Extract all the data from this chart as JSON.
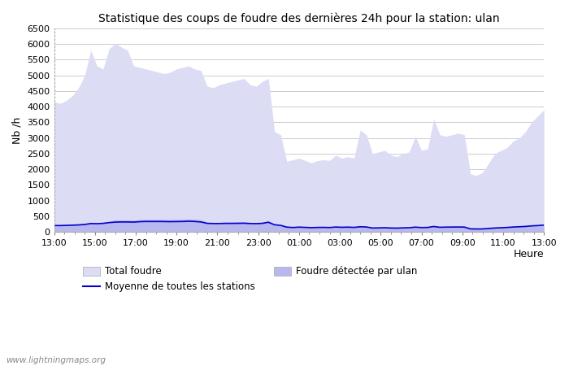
{
  "title": "Statistique des coups de foudre des dernières 24h pour la station: ulan",
  "xlabel": "Heure",
  "ylabel": "Nb /h",
  "xlim": [
    0,
    24
  ],
  "ylim": [
    0,
    6500
  ],
  "yticks": [
    0,
    500,
    1000,
    1500,
    2000,
    2500,
    3000,
    3500,
    4000,
    4500,
    5000,
    5500,
    6000,
    6500
  ],
  "xtick_labels": [
    "13:00",
    "15:00",
    "17:00",
    "19:00",
    "21:00",
    "23:00",
    "01:00",
    "03:00",
    "05:00",
    "07:00",
    "09:00",
    "11:00",
    "13:00"
  ],
  "xtick_positions": [
    0,
    2,
    4,
    6,
    8,
    10,
    12,
    14,
    16,
    18,
    20,
    22,
    24
  ],
  "color_total": "#dcdcf5",
  "color_ulan": "#b8b8ee",
  "color_moyenne": "#0000cc",
  "watermark": "www.lightningmaps.org",
  "total_foudre": [
    4150,
    4100,
    4200,
    4350,
    4600,
    5000,
    5800,
    5300,
    5200,
    5850,
    6020,
    5900,
    5800,
    5300,
    5250,
    5200,
    5150,
    5100,
    5050,
    5100,
    5200,
    5250,
    5300,
    5200,
    5150,
    4650,
    4600,
    4700,
    4750,
    4800,
    4850,
    4900,
    4700,
    4650,
    4800,
    4900,
    3200,
    3100,
    2250,
    2300,
    2350,
    2280,
    2200,
    2270,
    2300,
    2280,
    2450,
    2350,
    2400,
    2350,
    3250,
    3100,
    2500,
    2550,
    2600,
    2450,
    2400,
    2500,
    2550,
    3050,
    2600,
    2650,
    3600,
    3100,
    3050,
    3100,
    3150,
    3100,
    1850,
    1800,
    1900,
    2200,
    2500,
    2600,
    2700,
    2900,
    3000,
    3200,
    3500,
    3700,
    3900
  ],
  "foudre_ulan": [
    200,
    200,
    210,
    220,
    230,
    250,
    290,
    280,
    300,
    330,
    380,
    380,
    380,
    370,
    390,
    400,
    400,
    400,
    395,
    390,
    395,
    400,
    410,
    400,
    380,
    310,
    300,
    300,
    310,
    310,
    315,
    320,
    300,
    295,
    310,
    360,
    250,
    220,
    160,
    145,
    160,
    150,
    140,
    148,
    150,
    145,
    165,
    155,
    160,
    150,
    175,
    165,
    130,
    135,
    140,
    130,
    125,
    135,
    140,
    160,
    145,
    148,
    185,
    155,
    160,
    162,
    163,
    162,
    100,
    95,
    98,
    115,
    130,
    140,
    150,
    165,
    175,
    185,
    205,
    215,
    230
  ],
  "moyenne": [
    200,
    200,
    205,
    212,
    220,
    235,
    265,
    260,
    270,
    295,
    310,
    315,
    315,
    310,
    325,
    330,
    330,
    330,
    328,
    325,
    328,
    330,
    338,
    330,
    315,
    270,
    265,
    265,
    270,
    270,
    272,
    275,
    265,
    262,
    270,
    305,
    225,
    205,
    150,
    138,
    150,
    142,
    134,
    140,
    142,
    138,
    153,
    145,
    150,
    142,
    162,
    154,
    122,
    125,
    130,
    122,
    118,
    126,
    131,
    150,
    136,
    140,
    170,
    145,
    150,
    152,
    154,
    152,
    95,
    90,
    93,
    108,
    122,
    130,
    140,
    153,
    162,
    172,
    190,
    200,
    215
  ]
}
